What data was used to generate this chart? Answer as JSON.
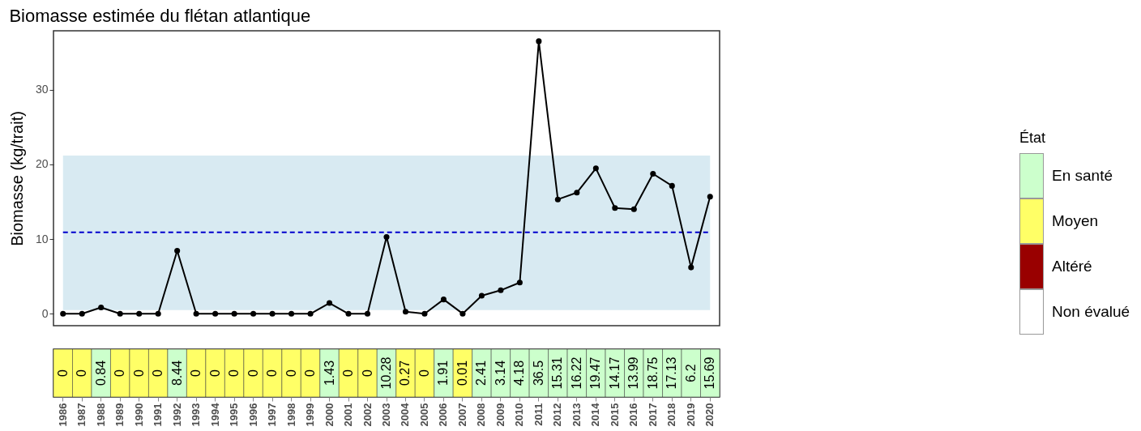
{
  "chart_data": [
    {
      "type": "line",
      "title": "Biomasse estimée du flétan atlantique",
      "ylabel": "Biomasse (kg/trait)",
      "categories": [
        "1986",
        "1987",
        "1988",
        "1989",
        "1990",
        "1991",
        "1992",
        "1993",
        "1994",
        "1995",
        "1996",
        "1997",
        "1998",
        "1999",
        "2000",
        "2001",
        "2002",
        "2003",
        "2004",
        "2005",
        "2006",
        "2007",
        "2008",
        "2009",
        "2010",
        "2011",
        "2012",
        "2013",
        "2014",
        "2015",
        "2016",
        "2017",
        "2018",
        "2019",
        "2020"
      ],
      "values": [
        0,
        0,
        0.84,
        0,
        0,
        0,
        8.44,
        0,
        0,
        0,
        0,
        0,
        0,
        0,
        1.43,
        0,
        0,
        10.28,
        0.27,
        0,
        1.91,
        0.01,
        2.41,
        3.14,
        4.18,
        36.5,
        15.31,
        16.22,
        19.47,
        14.17,
        13.99,
        18.75,
        17.13,
        6.2,
        15.69
      ],
      "color": "#000000",
      "marker": "circle",
      "ylim": [
        -1.6,
        37.9
      ],
      "yticks": [
        0,
        10,
        20,
        30
      ],
      "bands": [
        {
          "axis": "y",
          "from": 0.5,
          "to": 21.2,
          "color": "#d8eaf2"
        }
      ],
      "ref_lines": [
        {
          "axis": "y",
          "value": 10.9,
          "color": "#0000cd",
          "line_style": "dashed"
        }
      ],
      "tick_labels": "y"
    },
    {
      "type": "heatmap",
      "categories": [
        "1986",
        "1987",
        "1988",
        "1989",
        "1990",
        "1991",
        "1992",
        "1993",
        "1994",
        "1995",
        "1996",
        "1997",
        "1998",
        "1999",
        "2000",
        "2001",
        "2002",
        "2003",
        "2004",
        "2005",
        "2006",
        "2007",
        "2008",
        "2009",
        "2010",
        "2011",
        "2012",
        "2013",
        "2014",
        "2015",
        "2016",
        "2017",
        "2018",
        "2019",
        "2020"
      ],
      "y_categories": [
        null
      ],
      "cells": [
        [
          0,
          0,
          0.84,
          0,
          0,
          0,
          8.44,
          0,
          0,
          0,
          0,
          0,
          0,
          0,
          1.43,
          0,
          0,
          10.28,
          0.27,
          0,
          1.91,
          0.01,
          2.41,
          3.14,
          4.18,
          36.5,
          15.31,
          16.22,
          19.47,
          14.17,
          13.99,
          18.75,
          17.13,
          6.2,
          15.69
        ]
      ],
      "colors": [
        "#ffff66",
        "#ffff66",
        "#ccffcc",
        "#ffff66",
        "#ffff66",
        "#ffff66",
        "#ccffcc",
        "#ffff66",
        "#ffff66",
        "#ffff66",
        "#ffff66",
        "#ffff66",
        "#ffff66",
        "#ffff66",
        "#ccffcc",
        "#ffff66",
        "#ffff66",
        "#ccffcc",
        "#ffff66",
        "#ffff66",
        "#ccffcc",
        "#ffff66",
        "#ccffcc",
        "#ccffcc",
        "#ccffcc",
        "#ccffcc",
        "#ccffcc",
        "#ccffcc",
        "#ccffcc",
        "#ccffcc",
        "#ccffcc",
        "#ccffcc",
        "#ccffcc",
        "#ccffcc",
        "#ccffcc"
      ],
      "data_labels": true,
      "annotations": [
        "État",
        "En santé",
        "Moyen",
        "Altéré",
        "Non évalué"
      ]
    }
  ]
}
